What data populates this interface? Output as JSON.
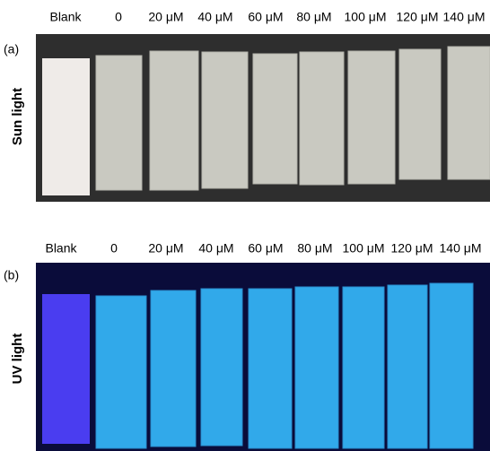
{
  "panels": [
    {
      "label": "(a)",
      "side_label": "Sun light",
      "columns": [
        "Blank",
        "0",
        "20 μM",
        "40 μM",
        "60 μM",
        "80 μM",
        "100 μM",
        "120 μM",
        "140 μM"
      ]
    },
    {
      "label": "(b)",
      "side_label": "UV light",
      "columns": [
        "Blank",
        "0",
        "20 μM",
        "40 μM",
        "60 μM",
        "80 μM",
        "100 μM",
        "120 μM",
        "140 μM"
      ]
    }
  ]
}
